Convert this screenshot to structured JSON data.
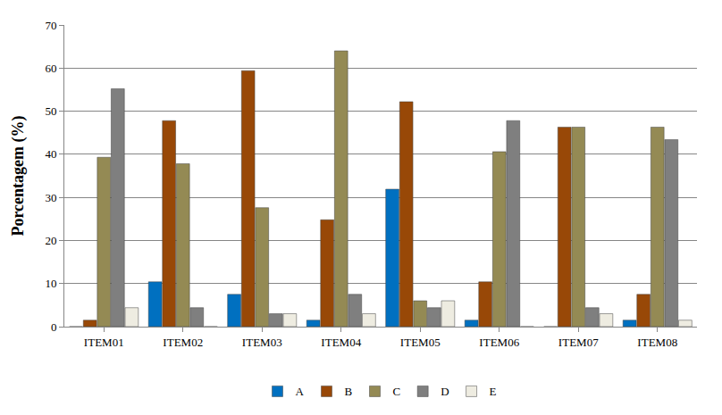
{
  "chart_data": {
    "type": "bar",
    "y_label": "Porcentagem (%)",
    "categories": [
      "ITEM01",
      "ITEM02",
      "ITEM03",
      "ITEM04",
      "ITEM05",
      "ITEM06",
      "ITEM07",
      "ITEM08"
    ],
    "series": [
      {
        "name": "A",
        "color": "#0070C0",
        "values": [
          0,
          10.4,
          7.5,
          1.5,
          31.9,
          1.5,
          0,
          1.5
        ]
      },
      {
        "name": "B",
        "color": "#984807",
        "values": [
          1.5,
          47.8,
          59.4,
          24.8,
          52.2,
          10.4,
          46.3,
          7.5
        ]
      },
      {
        "name": "C",
        "color": "#948A54",
        "values": [
          39.3,
          37.8,
          27.6,
          64.0,
          6.0,
          40.6,
          46.3,
          46.3
        ]
      },
      {
        "name": "D",
        "color": "#7F7F7F",
        "values": [
          55.2,
          4.4,
          3.0,
          7.5,
          4.4,
          47.8,
          4.4,
          43.4
        ]
      },
      {
        "name": "E",
        "color": "#EEECE1",
        "values": [
          4.4,
          0,
          3.0,
          3.0,
          6.0,
          0,
          3.0,
          1.5
        ]
      }
    ],
    "ylim": [
      0,
      70
    ],
    "yticks": [
      0,
      10,
      20,
      30,
      40,
      50,
      60,
      70
    ],
    "grid": true,
    "legend": "bottom"
  }
}
